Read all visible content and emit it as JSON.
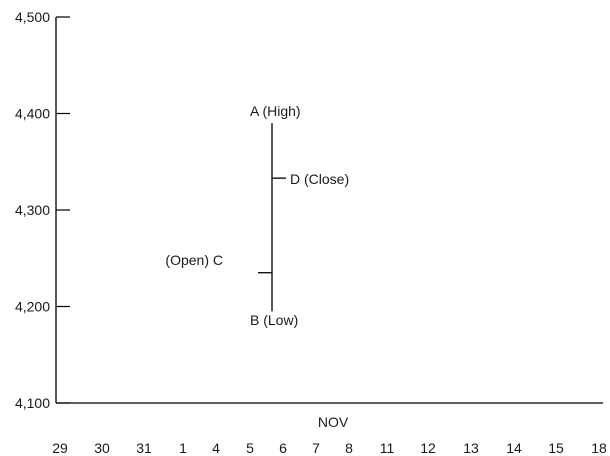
{
  "chart_data": {
    "type": "ohlc",
    "title": "",
    "xlabel": "NOV",
    "ylabel": "",
    "ylim": [
      4100,
      4500
    ],
    "y_ticks": [
      {
        "value": 4500,
        "label": "4,500"
      },
      {
        "value": 4400,
        "label": "4,400"
      },
      {
        "value": 4300,
        "label": "4,300"
      },
      {
        "value": 4200,
        "label": "4,200"
      },
      {
        "value": 4100,
        "label": "4,100"
      }
    ],
    "x_tick_labels": [
      "29",
      "30",
      "31",
      "1",
      "4",
      "5",
      "6",
      "7",
      "8",
      "11",
      "12",
      "13",
      "14",
      "15",
      "18"
    ],
    "bar": {
      "date": "6",
      "open": 4235,
      "high": 4390,
      "low": 4195,
      "close": 4333
    },
    "annotations": {
      "high": "A  (High)",
      "low": "B (Low)",
      "open": "(Open) C",
      "close": "D (Close)"
    },
    "grid": false,
    "legend": "none"
  }
}
